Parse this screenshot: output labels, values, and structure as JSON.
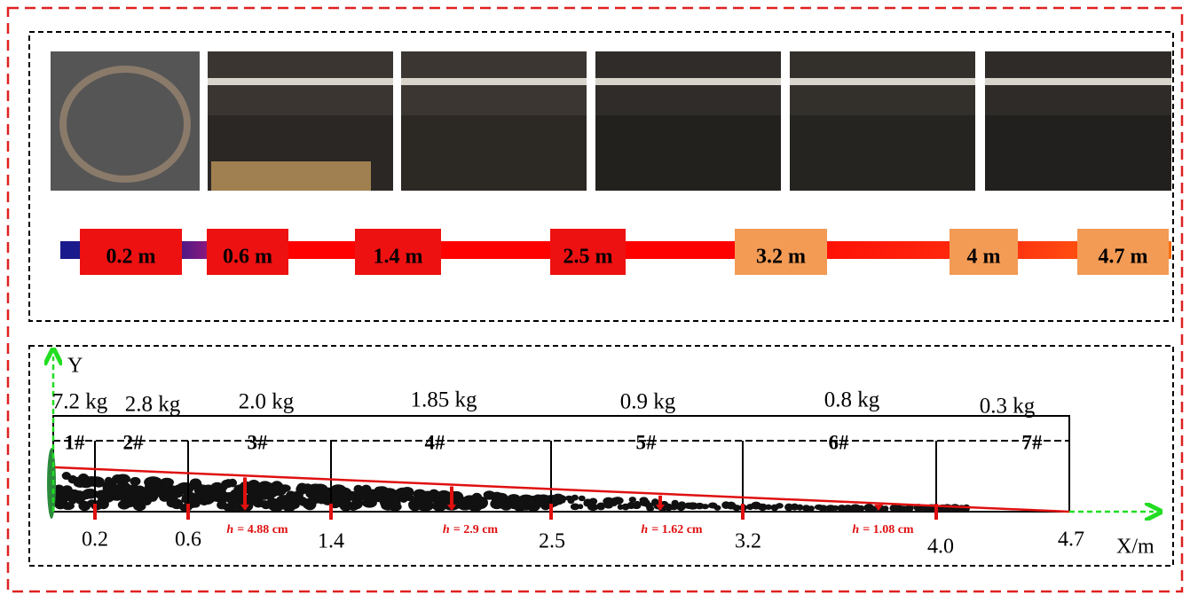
{
  "photo_strip": {
    "distance_labels": [
      "0.2 m",
      "0.6 m",
      "1.4 m",
      "2.5 m",
      "3.2 m",
      "4 m",
      "4.7 m"
    ]
  },
  "profile": {
    "y_axis_label": "Y",
    "x_axis_label": "X/m",
    "masses": [
      "7.2 kg",
      "2.8 kg",
      "2.0 kg",
      "1.85 kg",
      "0.9 kg",
      "0.8 kg",
      "0.3 kg"
    ],
    "sections": [
      "1#",
      "2#",
      "3#",
      "4#",
      "5#",
      "6#",
      "7#"
    ],
    "x_ticks": [
      "0.2",
      "0.6",
      "1.4",
      "2.5",
      "3.2",
      "4.0",
      "4.7"
    ],
    "heights": [
      {
        "symbol": "h",
        "text": "= 4.88 cm"
      },
      {
        "symbol": "h",
        "text": "= 2.9 cm"
      },
      {
        "symbol": "h",
        "text": "= 1.62 cm"
      },
      {
        "symbol": "h",
        "text": "= 1.08 cm"
      }
    ]
  }
}
